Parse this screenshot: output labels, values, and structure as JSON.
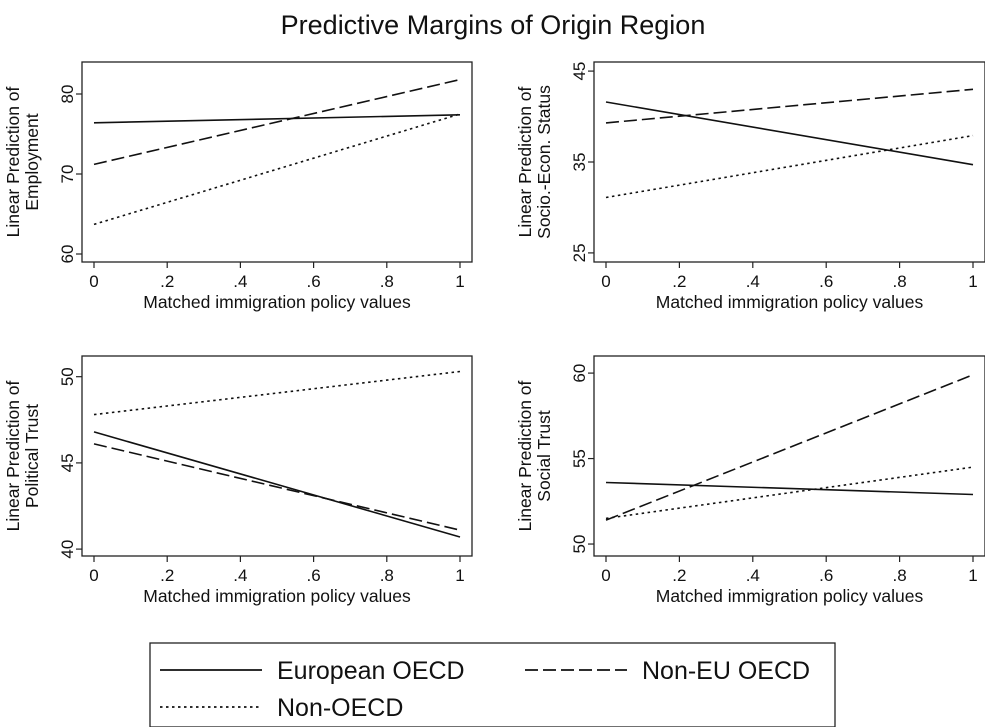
{
  "title": "Predictive Margins of Origin Region",
  "legend": {
    "placement": "bottom-center",
    "entries": [
      {
        "label": "European OECD",
        "dash": "solid"
      },
      {
        "label": "Non-EU OECD",
        "dash": "dashed"
      },
      {
        "label": "Non-OECD",
        "dash": "dotted"
      }
    ]
  },
  "chart_data": [
    {
      "type": "line",
      "xlabel": "Matched immigration policy values",
      "ylabel": [
        "Linear Prediction of",
        "Employment"
      ],
      "xlim": [
        0,
        1
      ],
      "ylim": [
        59,
        84
      ],
      "xticks": [
        0,
        0.2,
        0.4,
        0.6,
        0.8,
        1
      ],
      "xtick_labels": [
        "0",
        ".2",
        ".4",
        ".6",
        ".8",
        "1"
      ],
      "yticks": [
        60,
        70,
        80
      ],
      "ytick_labels": [
        "60",
        "70",
        "80"
      ],
      "grid": false,
      "x": [
        0,
        1
      ],
      "series": [
        {
          "name": "European OECD",
          "values": [
            76.4,
            77.4
          ]
        },
        {
          "name": "Non-EU OECD",
          "values": [
            71.2,
            81.8
          ]
        },
        {
          "name": "Non-OECD",
          "values": [
            63.7,
            77.5
          ]
        }
      ]
    },
    {
      "type": "line",
      "xlabel": "Matched immigration policy values",
      "ylabel": [
        "Linear Prediction of",
        "Socio.-Econ. Status"
      ],
      "xlim": [
        0,
        1
      ],
      "ylim": [
        24,
        46
      ],
      "xticks": [
        0,
        0.2,
        0.4,
        0.6,
        0.8,
        1
      ],
      "xtick_labels": [
        "0",
        ".2",
        ".4",
        ".6",
        ".8",
        "1"
      ],
      "yticks": [
        25,
        35,
        45
      ],
      "ytick_labels": [
        "25",
        "35",
        "45"
      ],
      "grid": false,
      "x": [
        0,
        1
      ],
      "series": [
        {
          "name": "European OECD",
          "values": [
            41.6,
            34.7
          ]
        },
        {
          "name": "Non-EU OECD",
          "values": [
            39.3,
            43.0
          ]
        },
        {
          "name": "Non-OECD",
          "values": [
            31.1,
            37.9
          ]
        }
      ]
    },
    {
      "type": "line",
      "xlabel": "Matched immigration policy values",
      "ylabel": [
        "Linear Prediction of",
        "Political Trust"
      ],
      "xlim": [
        0,
        1
      ],
      "ylim": [
        39.6,
        51.2
      ],
      "xticks": [
        0,
        0.2,
        0.4,
        0.6,
        0.8,
        1
      ],
      "xtick_labels": [
        "0",
        ".2",
        ".4",
        ".6",
        ".8",
        "1"
      ],
      "yticks": [
        40,
        45,
        50
      ],
      "ytick_labels": [
        "40",
        "45",
        "50"
      ],
      "grid": false,
      "x": [
        0,
        1
      ],
      "series": [
        {
          "name": "European OECD",
          "values": [
            46.8,
            40.7
          ]
        },
        {
          "name": "Non-EU OECD",
          "values": [
            46.1,
            41.1
          ]
        },
        {
          "name": "Non-OECD",
          "values": [
            47.8,
            50.3
          ]
        }
      ]
    },
    {
      "type": "line",
      "xlabel": "Matched immigration policy values",
      "ylabel": [
        "Linear Prediction of",
        "Social Trust"
      ],
      "xlim": [
        0,
        1
      ],
      "ylim": [
        49.3,
        61.0
      ],
      "xticks": [
        0,
        0.2,
        0.4,
        0.6,
        0.8,
        1
      ],
      "xtick_labels": [
        "0",
        ".2",
        ".4",
        ".6",
        ".8",
        "1"
      ],
      "yticks": [
        50,
        55,
        60
      ],
      "ytick_labels": [
        "50",
        "55",
        "60"
      ],
      "grid": false,
      "x": [
        0,
        1
      ],
      "series": [
        {
          "name": "European OECD",
          "values": [
            53.6,
            52.9
          ]
        },
        {
          "name": "Non-EU OECD",
          "values": [
            51.4,
            59.9
          ]
        },
        {
          "name": "Non-OECD",
          "values": [
            51.5,
            54.5
          ]
        }
      ]
    }
  ]
}
